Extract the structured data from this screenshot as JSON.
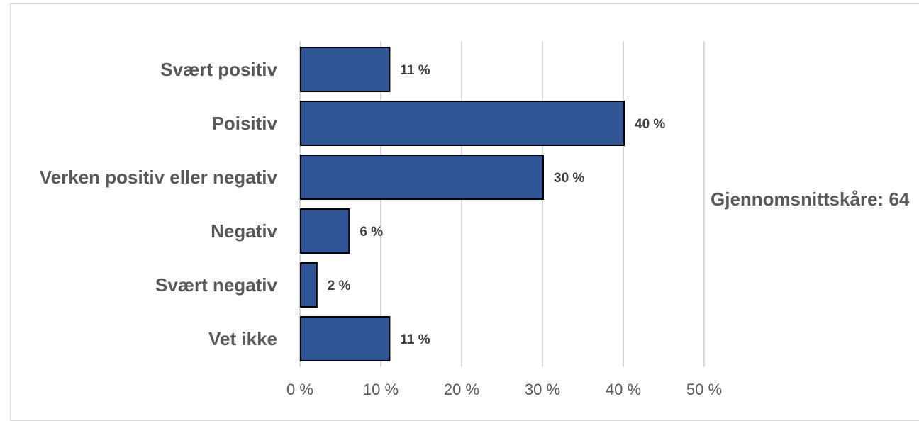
{
  "chart_data": {
    "type": "bar",
    "orientation": "horizontal",
    "categories": [
      "Svært positiv",
      "Poisitiv",
      "Verken positiv eller negativ",
      "Negativ",
      "Svært negativ",
      "Vet ikke"
    ],
    "values": [
      11,
      40,
      30,
      6,
      2,
      11
    ],
    "value_labels": [
      "11 %",
      "40 %",
      "30 %",
      "6 %",
      "2 %",
      "11 %"
    ],
    "xlim": [
      0,
      50
    ],
    "x_ticks": [
      0,
      10,
      20,
      30,
      40,
      50
    ],
    "x_tick_labels": [
      "0 %",
      "10 %",
      "20 %",
      "30 %",
      "40 %",
      "50 %"
    ],
    "grid": true,
    "annotation": "Gjennomsnittskåre: 64",
    "colors": {
      "bar_fill": "#2f5597",
      "bar_stroke": "#000000",
      "gridline": "#d9d9d9",
      "label_text": "#595959",
      "value_text": "#404040"
    }
  }
}
